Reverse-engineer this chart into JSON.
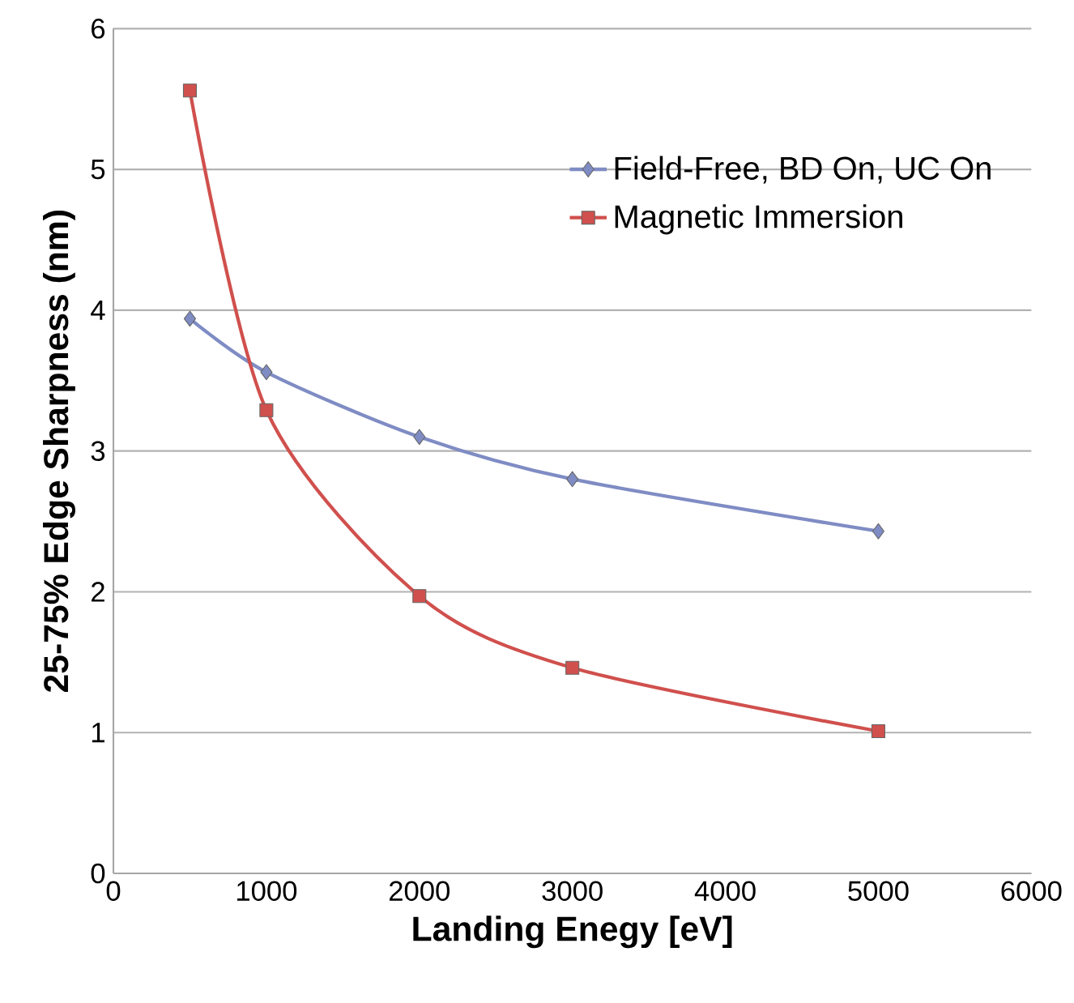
{
  "chart_data": {
    "type": "line",
    "xlabel": "Landing Enegy [eV]",
    "ylabel": "25-75% Edge Sharpness (nm)",
    "xlim": [
      0,
      6000
    ],
    "xticks": [
      0,
      1000,
      2000,
      3000,
      4000,
      5000,
      6000
    ],
    "ylim": [
      0,
      6
    ],
    "yticks": [
      0,
      1,
      2,
      3,
      4,
      5,
      6
    ],
    "grid": "y",
    "legend": "top right",
    "series": [
      {
        "name": "Field-Free, BD On, UC On",
        "color": "#7f8cc4",
        "marker": "diamond",
        "x": [
          500,
          1000,
          2000,
          3000,
          5000
        ],
        "values": [
          3.94,
          3.56,
          3.1,
          2.8,
          2.43
        ]
      },
      {
        "name": "Magnetic Immersion",
        "color": "#d0504d",
        "marker": "square",
        "x": [
          500,
          1000,
          2000,
          3000,
          5000
        ],
        "values": [
          5.56,
          3.29,
          1.97,
          1.46,
          1.01
        ]
      }
    ]
  }
}
